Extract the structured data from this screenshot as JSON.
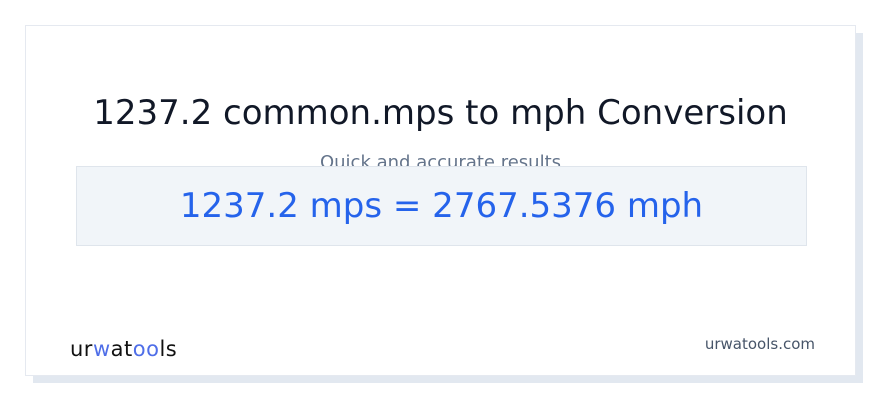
{
  "header": {
    "title": "1237.2 common.mps to mph Conversion",
    "subtitle": "Quick and accurate results"
  },
  "result": {
    "text": "1237.2 mps = 2767.5376 mph"
  },
  "footer": {
    "logo_text": "urwatools",
    "site": "urwatools.com"
  },
  "colors": {
    "accent": "#2563eb",
    "logo_accent": "#4f6ee8"
  }
}
